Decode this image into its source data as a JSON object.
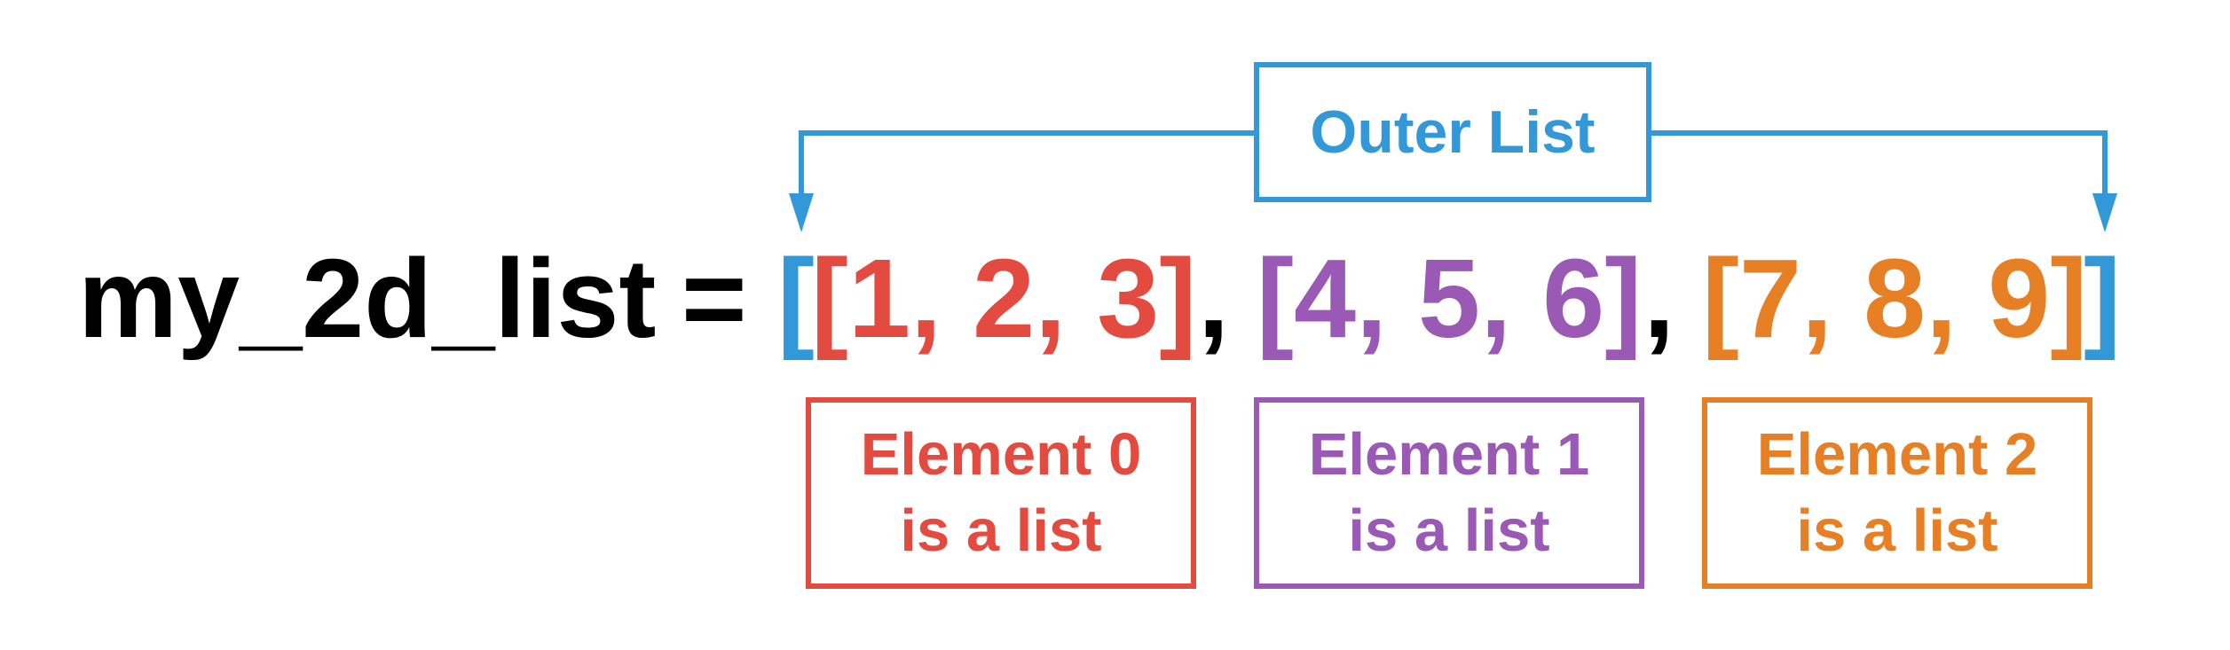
{
  "colors": {
    "outer": "#3398d8",
    "element_0": "#e44b40",
    "element_1": "#9b59b6",
    "element_2": "#e77f24",
    "code_text": "#000000"
  },
  "code": {
    "variable": "my_2d_list",
    "equals": "=",
    "outer_open": "[",
    "outer_close": "]",
    "separator": ",",
    "element_0": "[1, 2, 3]",
    "element_1": "[4, 5, 6]",
    "element_2": "[7, 8, 9]"
  },
  "outer_label": "Outer List",
  "element_labels": [
    {
      "line1": "Element 0",
      "line2": "is a list"
    },
    {
      "line1": "Element 1",
      "line2": "is a list"
    },
    {
      "line1": "Element 2",
      "line2": "is a list"
    }
  ]
}
